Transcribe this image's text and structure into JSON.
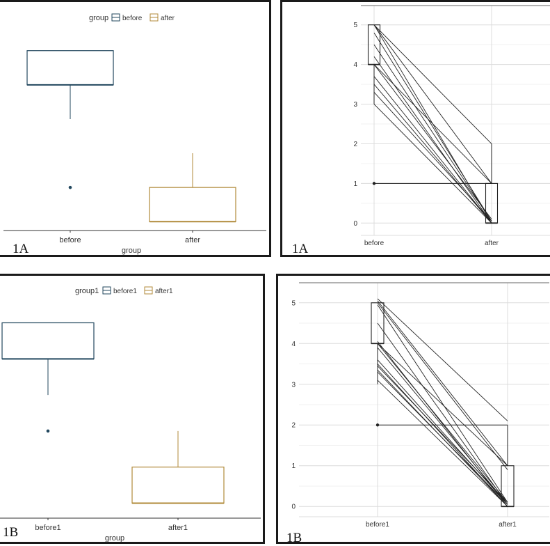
{
  "chart_data": [
    {
      "id": "1A-box",
      "type": "boxplot",
      "panel_label": "1A",
      "xlabel": "group",
      "categories": [
        "before",
        "after"
      ],
      "legend": {
        "title": "group",
        "entries": [
          "before",
          "after"
        ],
        "position": "top"
      },
      "colors": [
        "#22475e",
        "#b08a3a"
      ],
      "ylim": [
        -0.3,
        5.3
      ],
      "boxes": [
        {
          "min": 3,
          "q1": 4,
          "median": 4,
          "q3": 5,
          "max": 5,
          "outliers": [
            1
          ]
        },
        {
          "min": 0,
          "q1": 0,
          "median": 0,
          "q3": 1,
          "max": 2,
          "outliers": []
        }
      ]
    },
    {
      "id": "1A-paired",
      "type": "boxplot-paired-lines",
      "panel_label": "1A",
      "categories": [
        "before",
        "after"
      ],
      "yticks": [
        "0",
        "1",
        "2",
        "3",
        "4",
        "5"
      ],
      "ylim": [
        -0.1,
        5.1
      ],
      "boxes": [
        {
          "min": 3,
          "q1": 4,
          "median": 4,
          "q3": 5,
          "max": 5
        },
        {
          "min": 0,
          "q1": 0,
          "median": 0,
          "q3": 1,
          "max": 2
        }
      ],
      "pairs": [
        [
          5,
          0
        ],
        [
          5,
          1
        ],
        [
          5,
          2
        ],
        [
          4.8,
          0.05
        ],
        [
          4.5,
          0.05
        ],
        [
          4.2,
          0
        ],
        [
          4,
          0.1
        ],
        [
          4,
          1
        ],
        [
          3.7,
          0
        ],
        [
          3.5,
          0
        ],
        [
          3.3,
          0.05
        ],
        [
          3,
          0
        ],
        [
          1,
          1
        ]
      ]
    },
    {
      "id": "1B-box",
      "type": "boxplot",
      "panel_label": "1B",
      "xlabel": "group",
      "categories": [
        "before1",
        "after1"
      ],
      "legend": {
        "title": "group1",
        "entries": [
          "before1",
          "after1"
        ],
        "position": "top"
      },
      "colors": [
        "#22475e",
        "#b08a3a"
      ],
      "ylim": [
        -0.3,
        5.3
      ],
      "boxes": [
        {
          "min": 3,
          "q1": 4,
          "median": 4,
          "q3": 5,
          "max": 5,
          "outliers": [
            2
          ]
        },
        {
          "min": 0,
          "q1": 0,
          "median": 0,
          "q3": 1,
          "max": 2,
          "outliers": []
        }
      ]
    },
    {
      "id": "1B-paired",
      "type": "boxplot-paired-lines",
      "panel_label": "1B",
      "categories": [
        "before1",
        "after1"
      ],
      "yticks": [
        "0",
        "1",
        "2",
        "3",
        "4",
        "5"
      ],
      "ylim": [
        -0.15,
        5.15
      ],
      "boxes": [
        {
          "min": 3,
          "q1": 4,
          "median": 4,
          "q3": 5,
          "max": 5
        },
        {
          "min": 0,
          "q1": 0,
          "median": 0,
          "q3": 1,
          "max": 2
        }
      ],
      "pairs": [
        [
          5.1,
          2.1
        ],
        [
          5.05,
          1
        ],
        [
          5,
          0.9
        ],
        [
          4.95,
          0.1
        ],
        [
          4.5,
          0.05
        ],
        [
          4.05,
          0
        ],
        [
          4,
          0.1
        ],
        [
          4,
          1
        ],
        [
          3.9,
          0.05
        ],
        [
          3.6,
          0.05
        ],
        [
          3.5,
          0
        ],
        [
          3.45,
          0.1
        ],
        [
          3.35,
          0
        ],
        [
          3.3,
          0.05
        ],
        [
          3.1,
          0
        ],
        [
          2,
          2
        ]
      ]
    }
  ]
}
